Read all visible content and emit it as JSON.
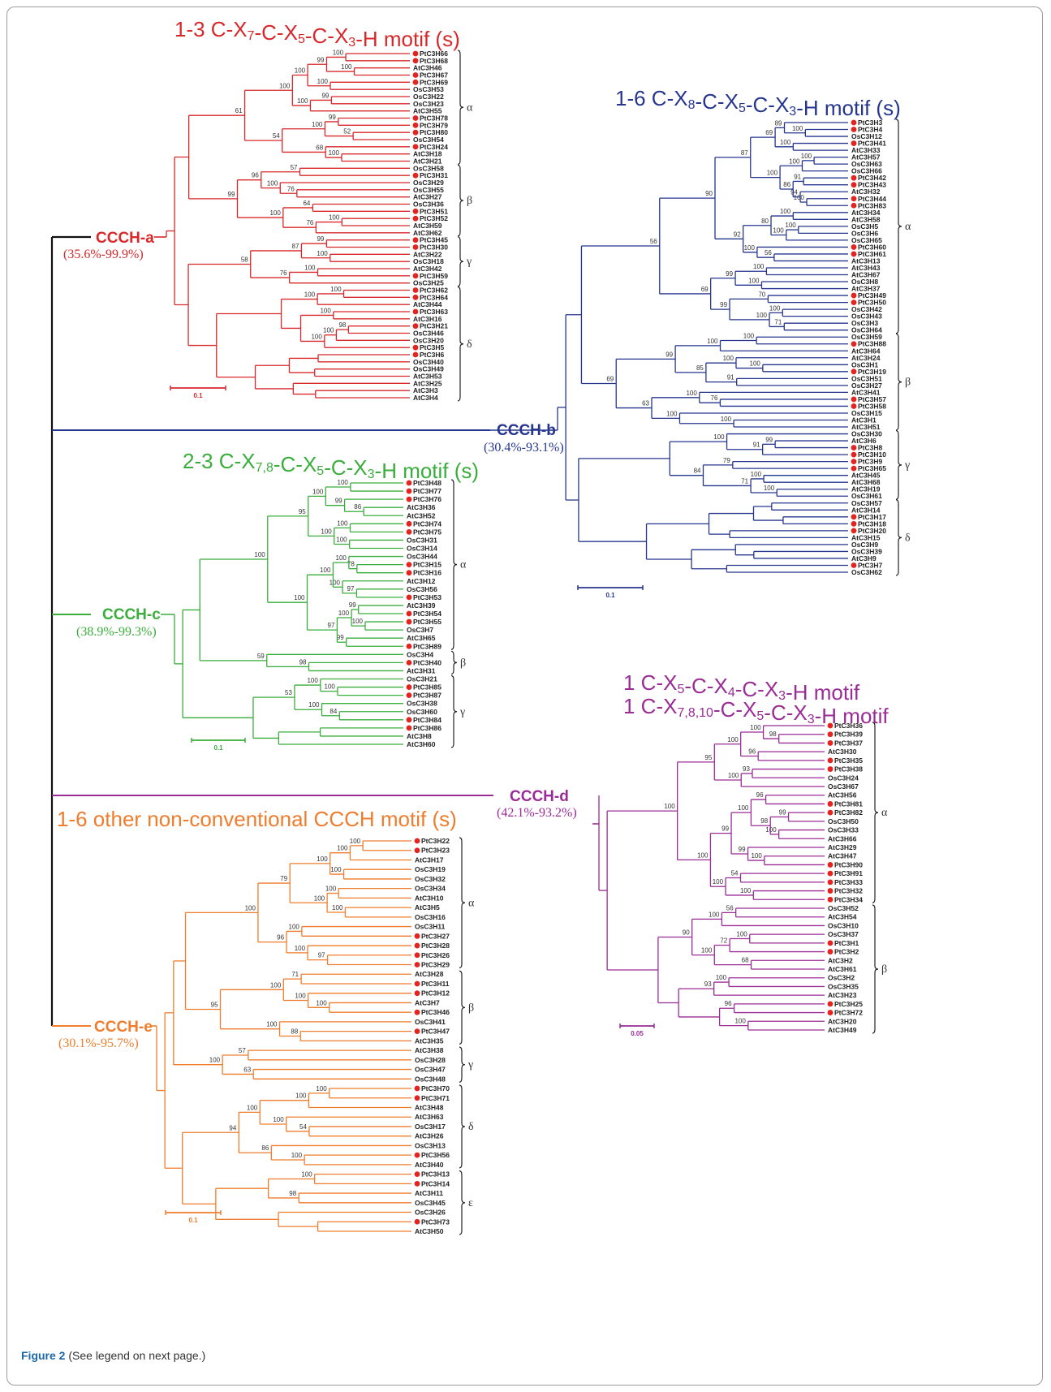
{
  "caption": {
    "label": "Figure 2",
    "text": " (See legend on next page.)"
  },
  "colors": {
    "root": "#111111",
    "a": "#d8282a",
    "b": "#26368f",
    "c": "#3aae3c",
    "d": "#9a2c96",
    "e": "#ef7d2d",
    "dot": "#e5231f"
  },
  "clades": [
    {
      "key": "a",
      "name": "CCCH-a",
      "range": "(35.6%-99.9%)",
      "motif": [
        "1-3 C-X7-C-X5-C-X3-H motif (s)"
      ],
      "scale": "0.1",
      "leaves": [
        "PtC3H66",
        "PtC3H68",
        "AtC3H46",
        "PtC3H67",
        "PtC3H69",
        "OsC3H53",
        "OsC3H22",
        "OsC3H23",
        "AtC3H55",
        "PtC3H78",
        "PtC3H79",
        "PtC3H80",
        "OsC3H54",
        "PtC3H24",
        "AtC3H18",
        "AtC3H21",
        "OsC3H58",
        "PtC3H31",
        "OsC3H29",
        "OsC3H55",
        "AtC3H27",
        "OsC3H36",
        "PtC3H51",
        "PtC3H52",
        "AtC3H59",
        "AtC3H62",
        "PtC3H45",
        "PtC3H30",
        "AtC3H22",
        "OsC3H18",
        "AtC3H42",
        "PtC3H59",
        "OsC3H25",
        "PtC3H62",
        "PtC3H64",
        "AtC3H44",
        "PtC3H63",
        "AtC3H16",
        "PtC3H21",
        "OsC3H46",
        "OsC3H20",
        "PtC3H5",
        "PtC3H6",
        "OsC3H40",
        "OsC3H49",
        "AtC3H53",
        "AtC3H25",
        "AtC3H3",
        "AtC3H4"
      ],
      "dots": [
        0,
        1,
        3,
        4,
        9,
        10,
        11,
        13,
        17,
        22,
        23,
        26,
        27,
        31,
        33,
        34,
        36,
        38,
        41,
        42
      ],
      "groups": [
        {
          "label": "α",
          "from": 0,
          "to": 15
        },
        {
          "label": "β",
          "from": 16,
          "to": 25
        },
        {
          "label": "γ",
          "from": 26,
          "to": 32
        },
        {
          "label": "δ",
          "from": 33,
          "to": 48
        }
      ],
      "boot": [
        "100",
        "100",
        "99",
        "100",
        "100",
        "99",
        "100",
        "100",
        "99",
        "52",
        "100",
        "100",
        "68",
        "54",
        "61",
        "57",
        "76",
        "100",
        "96",
        "64",
        "100",
        "76",
        "100",
        "99",
        "99",
        "100",
        "87",
        "100",
        "76",
        "58",
        "100",
        "100",
        "100",
        "98",
        "100",
        "100"
      ]
    },
    {
      "key": "b",
      "name": "CCCH-b",
      "range": "(30.4%-93.1%)",
      "motif": [
        "1-6 C-X8-C-X5-C-X3-H motif (s)"
      ],
      "scale": "0.1",
      "leaves": [
        "PtC3H3",
        "PtC3H4",
        "OsC3H12",
        "PtC3H41",
        "AtC3H33",
        "AtC3H57",
        "OsC3H63",
        "OsC3H66",
        "PtC3H42",
        "PtC3H43",
        "AtC3H32",
        "PtC3H44",
        "PtC3H83",
        "AtC3H34",
        "AtC3H58",
        "OsC3H5",
        "OsC3H6",
        "OsC3H65",
        "PtC3H60",
        "PtC3H61",
        "AtC3H13",
        "AtC3H43",
        "AtC3H67",
        "OsC3H8",
        "AtC3H37",
        "PtC3H49",
        "PtC3H50",
        "OsC3H42",
        "OsC3H43",
        "OsC3H3",
        "OsC3H64",
        "OsC3H59",
        "PtC3H88",
        "AtC3H64",
        "AtC3H24",
        "OsC3H1",
        "PtC3H19",
        "OsC3H51",
        "OsC3H27",
        "AtC3H41",
        "PtC3H57",
        "PtC3H58",
        "OsC3H15",
        "AtC3H1",
        "AtC3H51",
        "OsC3H30",
        "AtC3H6",
        "PtC3H8",
        "PtC3H10",
        "PtC3H9",
        "PtC3H65",
        "AtC3H45",
        "AtC3H68",
        "AtC3H19",
        "OsC3H61",
        "OsC3H57",
        "AtC3H14",
        "PtC3H17",
        "PtC3H18",
        "PtC3H20",
        "AtC3H15",
        "OsC3H9",
        "OsC3H39",
        "AtC3H9",
        "PtC3H7",
        "OsC3H62"
      ],
      "dots": [
        0,
        1,
        3,
        8,
        9,
        11,
        12,
        18,
        19,
        25,
        26,
        32,
        36,
        40,
        41,
        47,
        48,
        49,
        50,
        57,
        58,
        59,
        64
      ],
      "groups": [
        {
          "label": "α",
          "from": 0,
          "to": 30
        },
        {
          "label": "β",
          "from": 31,
          "to": 44
        },
        {
          "label": "γ",
          "from": 45,
          "to": 54
        },
        {
          "label": "δ",
          "from": 55,
          "to": 65
        }
      ],
      "boot": [
        "100",
        "89",
        "100",
        "69",
        "100",
        "100",
        "91",
        "100",
        "94",
        "86",
        "100",
        "87",
        "100",
        "100",
        "100",
        "80",
        "56",
        "100",
        "92",
        "90",
        "100",
        "100",
        "99",
        "70",
        "100",
        "71",
        "100",
        "99",
        "69",
        "56",
        "100",
        "100",
        "100",
        "100",
        "91",
        "85",
        "99",
        "76",
        "100",
        "100",
        "100",
        "63",
        "69",
        "99",
        "91",
        "100",
        "79",
        "100",
        "100",
        "71",
        "84"
      ]
    },
    {
      "key": "c",
      "name": "CCCH-c",
      "range": "(38.9%-99.3%)",
      "motif": [
        "2-3 C-X7,8-C-X5-C-X3-H motif (s)"
      ],
      "scale": "0.1",
      "leaves": [
        "PtC3H48",
        "PtC3H77",
        "PtC3H76",
        "AtC3H36",
        "AtC3H52",
        "PtC3H74",
        "PtC3H75",
        "OsC3H31",
        "OsC3H14",
        "OsC3H44",
        "PtC3H15",
        "PtC3H16",
        "AtC3H12",
        "OsC3H56",
        "PtC3H53",
        "AtC3H39",
        "PtC3H54",
        "PtC3H55",
        "OsC3H7",
        "AtC3H65",
        "PtC3H89",
        "OsC3H4",
        "PtC3H40",
        "AtC3H31",
        "OsC3H21",
        "PtC3H85",
        "PtC3H87",
        "OsC3H38",
        "OsC3H60",
        "PtC3H84",
        "PtC3H86",
        "AtC3H8",
        "AtC3H60"
      ],
      "dots": [
        0,
        1,
        2,
        5,
        6,
        10,
        11,
        14,
        16,
        17,
        20,
        22,
        25,
        26,
        29,
        30
      ],
      "groups": [
        {
          "label": "α",
          "from": 0,
          "to": 20
        },
        {
          "label": "β",
          "from": 21,
          "to": 23
        },
        {
          "label": "γ",
          "from": 24,
          "to": 32
        }
      ],
      "boot": [
        "100",
        "86",
        "99",
        "100",
        "100",
        "100",
        "100",
        "95",
        "78",
        "100",
        "97",
        "100",
        "100",
        "99",
        "100",
        "100",
        "99",
        "97",
        "100",
        "100",
        "98",
        "59",
        "100",
        "100",
        "84",
        "100",
        "53"
      ]
    },
    {
      "key": "d",
      "name": "CCCH-d",
      "range": "(42.1%-93.2%)",
      "motif": [
        "1 C-X5-C-X4-C-X3-H motif",
        "1 C-X7,8,10-C-X5-C-X3-H motif"
      ],
      "scale": "0.05",
      "leaves": [
        "PtC3H36",
        "PtC3H39",
        "PtC3H37",
        "AtC3H30",
        "PtC3H35",
        "PtC3H38",
        "OsC3H24",
        "OsC3H67",
        "AtC3H56",
        "PtC3H81",
        "PtC3H82",
        "OsC3H50",
        "OsC3H33",
        "AtC3H66",
        "AtC3H29",
        "AtC3H47",
        "PtC3H90",
        "PtC3H91",
        "PtC3H33",
        "PtC3H32",
        "PtC3H34",
        "OsC3H52",
        "AtC3H54",
        "OsC3H10",
        "OsC3H37",
        "PtC3H1",
        "PtC3H2",
        "AtC3H2",
        "AtC3H61",
        "OsC3H2",
        "OsC3H35",
        "AtC3H23",
        "PtC3H25",
        "PtC3H72",
        "AtC3H20",
        "AtC3H49"
      ],
      "dots": [
        0,
        1,
        2,
        4,
        5,
        9,
        10,
        16,
        17,
        18,
        19,
        20,
        25,
        26,
        32,
        33
      ],
      "groups": [
        {
          "label": "α",
          "from": 0,
          "to": 20
        },
        {
          "label": "β",
          "from": 21,
          "to": 35
        }
      ],
      "boot": [
        "98",
        "100",
        "96",
        "100",
        "93",
        "100",
        "95",
        "96",
        "99",
        "100",
        "98",
        "100",
        "100",
        "99",
        "99",
        "54",
        "100",
        "100",
        "100",
        "100",
        "56",
        "100",
        "100",
        "72",
        "68",
        "100",
        "90",
        "100",
        "93",
        "96",
        "100"
      ]
    },
    {
      "key": "e",
      "name": "CCCH-e",
      "range": "(30.1%-95.7%)",
      "motif": [
        "1-6 other non-conventional CCCH motif (s)"
      ],
      "scale": "0.1",
      "leaves": [
        "PtC3H22",
        "PtC3H23",
        "AtC3H17",
        "OsC3H19",
        "OsC3H32",
        "OsC3H34",
        "AtC3H10",
        "AtC3H5",
        "OsC3H16",
        "OsC3H11",
        "PtC3H27",
        "PtC3H28",
        "PtC3H26",
        "PtC3H29",
        "AtC3H28",
        "PtC3H11",
        "PtC3H12",
        "AtC3H7",
        "PtC3H46",
        "OsC3H41",
        "PtC3H47",
        "AtC3H35",
        "AtC3H38",
        "OsC3H28",
        "OsC3H47",
        "OsC3H48",
        "PtC3H70",
        "PtC3H71",
        "AtC3H48",
        "AtC3H63",
        "OsC3H17",
        "AtC3H26",
        "OsC3H13",
        "PtC3H56",
        "AtC3H40",
        "PtC3H13",
        "PtC3H14",
        "AtC3H11",
        "OsC3H45",
        "OsC3H26",
        "PtC3H73",
        "AtC3H50"
      ],
      "dots": [
        0,
        1,
        10,
        11,
        12,
        13,
        15,
        16,
        18,
        20,
        26,
        27,
        33,
        35,
        36,
        40
      ],
      "groups": [
        {
          "label": "α",
          "from": 0,
          "to": 13
        },
        {
          "label": "β",
          "from": 14,
          "to": 21
        },
        {
          "label": "γ",
          "from": 22,
          "to": 25
        },
        {
          "label": "δ",
          "from": 26,
          "to": 34
        },
        {
          "label": "ε",
          "from": 35,
          "to": 41
        }
      ],
      "boot": [
        "100",
        "100",
        "100",
        "100",
        "100",
        "100",
        "100",
        "79",
        "100",
        "97",
        "100",
        "96",
        "100",
        "71",
        "100",
        "100",
        "100",
        "88",
        "100",
        "95",
        "57",
        "63",
        "100",
        "100",
        "100",
        "54",
        "100",
        "100",
        "100",
        "86",
        "94",
        "100",
        "98"
      ]
    }
  ]
}
